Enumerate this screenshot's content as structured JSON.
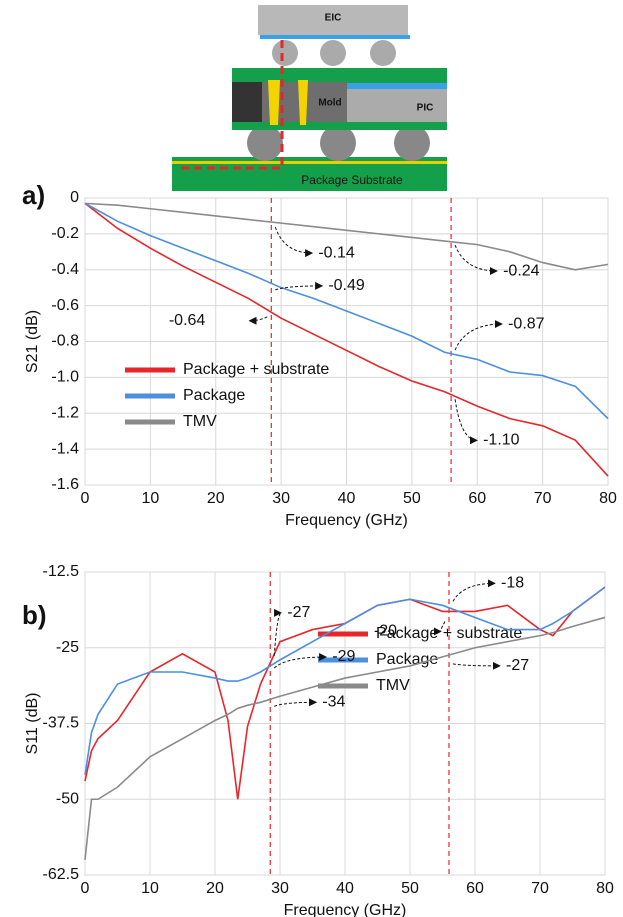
{
  "diagram": {
    "labels": [
      "EIC",
      "Mold",
      "PIC",
      "Package Substrate"
    ]
  },
  "chart_data": [
    {
      "type": "line",
      "panel_label": "a)",
      "xlabel": "Frequency (GHz)",
      "ylabel": "S21 (dB)",
      "x": [
        0,
        5,
        10,
        15,
        20,
        25,
        30,
        35,
        40,
        45,
        50,
        55,
        60,
        65,
        70,
        75,
        80
      ],
      "series": [
        {
          "name": "Package + substrate",
          "color": "#e8262a",
          "values": [
            -0.03,
            -0.17,
            -0.28,
            -0.38,
            -0.47,
            -0.56,
            -0.67,
            -0.76,
            -0.85,
            -0.94,
            -1.02,
            -1.08,
            -1.16,
            -1.23,
            -1.27,
            -1.35,
            -1.55
          ]
        },
        {
          "name": "Package",
          "color": "#4a8fe0",
          "values": [
            -0.03,
            -0.13,
            -0.21,
            -0.28,
            -0.35,
            -0.42,
            -0.5,
            -0.56,
            -0.63,
            -0.7,
            -0.77,
            -0.86,
            -0.9,
            -0.97,
            -0.99,
            -1.05,
            -1.23
          ]
        },
        {
          "name": "TMV",
          "color": "#8a8a8a",
          "values": [
            -0.03,
            -0.04,
            -0.06,
            -0.08,
            -0.1,
            -0.12,
            -0.14,
            -0.16,
            -0.18,
            -0.2,
            -0.22,
            -0.24,
            -0.26,
            -0.3,
            -0.36,
            -0.4,
            -0.37
          ]
        }
      ],
      "xlim": [
        0,
        80
      ],
      "xticks": [
        0,
        10,
        20,
        30,
        40,
        50,
        60,
        70,
        80
      ],
      "ylim": [
        -1.6,
        0
      ],
      "yticks": [
        0,
        -0.2,
        -0.4,
        -0.6,
        -0.8,
        {
          "value": -1,
          "label": "-1.0"
        },
        -1.2,
        -1.4,
        -1.6
      ],
      "grid": true,
      "vlines": [
        28.5,
        56
      ],
      "vline_color": "#e8262a",
      "annotations": [
        {
          "x": 28.5,
          "y": -0.14,
          "label": "-0.14"
        },
        {
          "x": 28.5,
          "y": -0.49,
          "label": "-0.49"
        },
        {
          "x": 28.5,
          "y": -0.64,
          "label": "-0.64"
        },
        {
          "x": 56,
          "y": -0.24,
          "label": "-0.24"
        },
        {
          "x": 56,
          "y": -0.87,
          "label": "-0.87"
        },
        {
          "x": 56,
          "y": -1.1,
          "label": "-1.10"
        }
      ]
    },
    {
      "type": "line",
      "panel_label": "b)",
      "xlabel": "Frequency (GHz)",
      "ylabel": "S11 (dB)",
      "x": [
        0,
        1,
        2,
        5,
        10,
        15,
        20,
        22,
        23.5,
        25,
        27,
        30,
        35,
        40,
        45,
        50,
        55,
        60,
        65,
        70,
        72,
        75,
        80
      ],
      "series": [
        {
          "name": "Package + substrate",
          "color": "#e8262a",
          "values": [
            -47,
            -42,
            -40,
            -37,
            -29,
            -26,
            -29,
            -37,
            -50,
            -38,
            -31,
            -24,
            -22,
            -21,
            -18,
            -17,
            -19,
            -19,
            -18,
            -22,
            -23,
            -19,
            -15
          ]
        },
        {
          "name": "Package",
          "color": "#4a8fe0",
          "values": [
            -46,
            -39,
            -36,
            -31,
            -29,
            -29,
            -30,
            -30.5,
            -30.5,
            -30,
            -29,
            -27,
            -24,
            -21,
            -18,
            -17,
            -18,
            -20,
            -22,
            -22,
            -21,
            -19,
            -15
          ]
        },
        {
          "name": "TMV",
          "color": "#8a8a8a",
          "values": [
            -60,
            -50,
            -50,
            -48,
            -43,
            -40,
            -37,
            -36,
            -35,
            -34.5,
            -34,
            -33,
            -31.5,
            -30,
            -29,
            -28,
            -26.5,
            -25,
            -24,
            -23,
            -22.5,
            -21.5,
            -20
          ]
        }
      ],
      "xlim": [
        0,
        80
      ],
      "xticks": [
        0,
        10,
        20,
        30,
        40,
        50,
        60,
        70,
        80
      ],
      "ylim": [
        -62.5,
        -12.5
      ],
      "yticks": [
        -62.5,
        -50,
        -37.5,
        -25,
        -12.5
      ],
      "grid": true,
      "vlines": [
        28.5,
        56
      ],
      "vline_color": "#e8262a",
      "annotations": [
        {
          "x": 28.5,
          "y": -27,
          "label": "-27"
        },
        {
          "x": 28.5,
          "y": -29,
          "label": "-29"
        },
        {
          "x": 28.5,
          "y": -34,
          "label": "-34"
        },
        {
          "x": 56,
          "y": -18,
          "label": "-18"
        },
        {
          "x": 56,
          "y": -20,
          "label": "-20"
        },
        {
          "x": 56,
          "y": -27,
          "label": "-27"
        }
      ]
    }
  ]
}
